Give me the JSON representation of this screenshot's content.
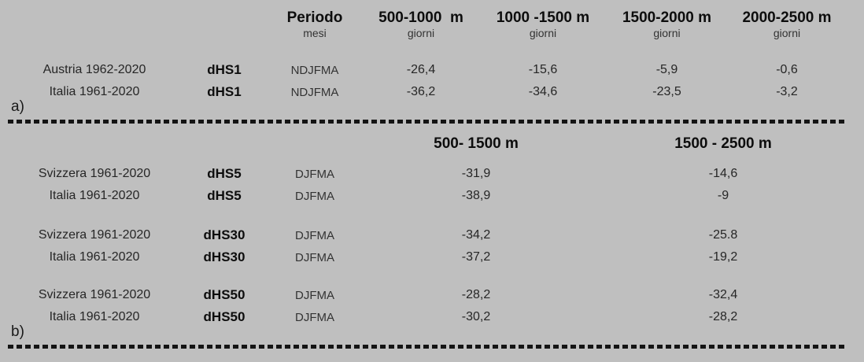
{
  "colors": {
    "background": "#bfbfbf",
    "text": "#1f1f1f",
    "bold_text": "#0d0d0d",
    "dash_line": "#141414"
  },
  "section_a": {
    "panel_label": "a)",
    "columns": [
      {
        "title": "Periodo",
        "sub": "mesi"
      },
      {
        "title": "500-1000  m",
        "sub": "giorni"
      },
      {
        "title": "1000 -1500 m",
        "sub": "giorni"
      },
      {
        "title": "1500-2000 m",
        "sub": "giorni"
      },
      {
        "title": "2000-2500 m",
        "sub": "giorni"
      }
    ],
    "rows": [
      {
        "station": "Austria 1962-2020",
        "index": "dHS1",
        "period": "NDJFMA",
        "values": [
          "-26,4",
          "-15,6",
          "-5,9",
          "-0,6"
        ]
      },
      {
        "station": "Italia 1961-2020",
        "index": "dHS1",
        "period": "NDJFMA",
        "values": [
          "-36,2",
          "-34,6",
          "-23,5",
          "-3,2"
        ]
      }
    ]
  },
  "section_b": {
    "panel_label": "b)",
    "columns": [
      {
        "title": "500- 1500 m"
      },
      {
        "title": "1500 - 2500 m"
      }
    ],
    "groups": [
      {
        "rows": [
          {
            "station": "Svizzera 1961-2020",
            "index": "dHS5",
            "period": "DJFMA",
            "values": [
              "-31,9",
              "-14,6"
            ]
          },
          {
            "station": "Italia 1961-2020",
            "index": "dHS5",
            "period": "DJFMA",
            "values": [
              "-38,9",
              "-9"
            ]
          }
        ]
      },
      {
        "rows": [
          {
            "station": "Svizzera 1961-2020",
            "index": "dHS30",
            "period": "DJFMA",
            "values": [
              "-34,2",
              "-25.8"
            ]
          },
          {
            "station": "Italia 1961-2020",
            "index": "dHS30",
            "period": "DJFMA",
            "values": [
              "-37,2",
              "-19,2"
            ]
          }
        ]
      },
      {
        "rows": [
          {
            "station": "Svizzera 1961-2020",
            "index": "dHS50",
            "period": "DJFMA",
            "values": [
              "-28,2",
              "-32,4"
            ]
          },
          {
            "station": "Italia 1961-2020",
            "index": "dHS50",
            "period": "DJFMA",
            "values": [
              "-30,2",
              "-28,2"
            ]
          }
        ]
      }
    ]
  }
}
